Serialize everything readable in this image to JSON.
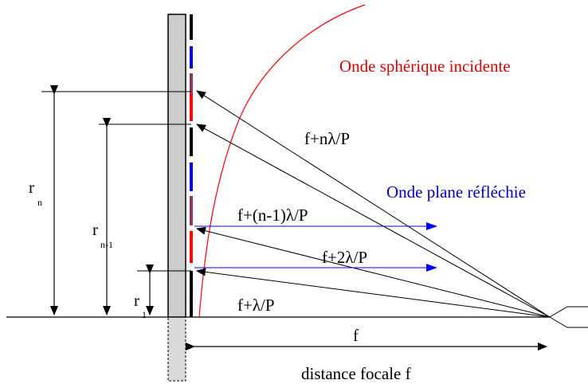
{
  "colors": {
    "wave_spherical": "#ff0000",
    "wave_plane": "#0000ff",
    "ring_black": "#000000",
    "ring_blue": "#0000dd",
    "ring_purple": "#993366",
    "ring_red": "#ff0000",
    "substrate": "#cccccc"
  },
  "labels": {
    "spherical_wave": "Onde sphérique incidente",
    "plane_wave": "Onde plane réfléchie",
    "path_n": "f+nλ/P",
    "path_n_minus_1": "f+(n-1)λ/P",
    "path_2": "f+2λ/P",
    "path_1": "f+λ/P",
    "focal_f": "f",
    "focal_distance": "distance focale f",
    "r_n_main": "r",
    "r_n_sub": "n",
    "r_n1_main": "r",
    "r_n1_sub": "n-1",
    "r_1_main": "r",
    "r_1_sub": "1"
  }
}
